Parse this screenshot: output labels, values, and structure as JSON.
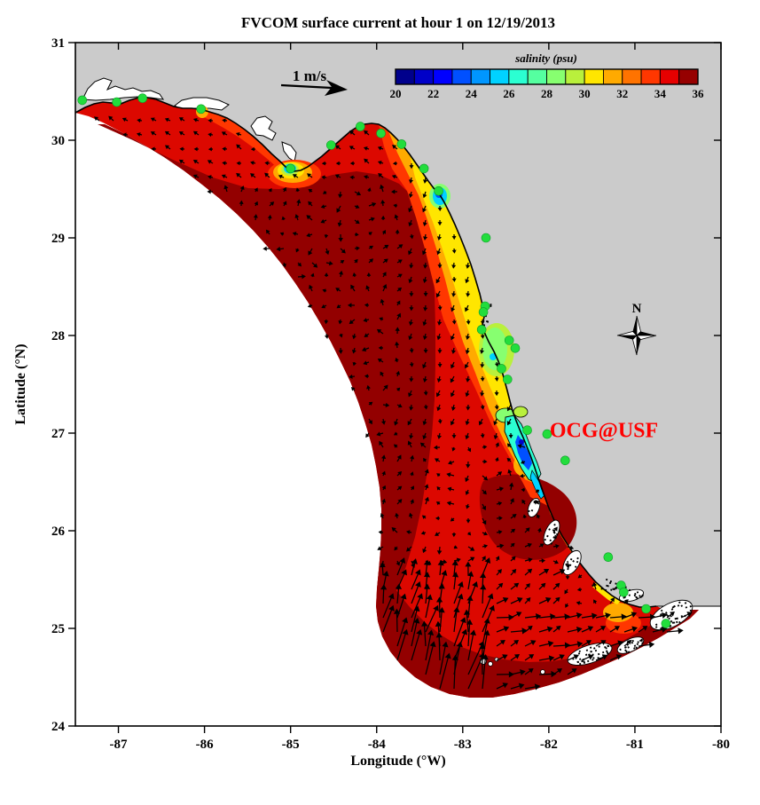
{
  "chart_data": {
    "type": "map",
    "title": "FVCOM surface current at hour 1 on 12/19/2013",
    "xlabel": "Longitude (°W)",
    "ylabel": "Latitude (°N)",
    "xlim": [
      -87.5,
      -80
    ],
    "ylim": [
      24,
      31
    ],
    "xticks": [
      "-87",
      "-86",
      "-85",
      "-84",
      "-83",
      "-82",
      "-81",
      "-80"
    ],
    "yticks": [
      "31",
      "30",
      "29",
      "28",
      "27",
      "26",
      "25",
      "24"
    ],
    "grid": false,
    "colorbar": {
      "label": "salinity (psu)",
      "min": 20,
      "max": 36,
      "ticks": [
        "20",
        "22",
        "24",
        "26",
        "28",
        "30",
        "32",
        "34",
        "36"
      ],
      "colors": [
        "#00008c",
        "#0000c8",
        "#0000ff",
        "#0050ff",
        "#0096ff",
        "#00d2ff",
        "#2bffd2",
        "#55ffa0",
        "#87ff70",
        "#b9f03c",
        "#ffe600",
        "#ffaa00",
        "#ff7300",
        "#ff3700",
        "#e60000",
        "#960000"
      ]
    },
    "scale_arrow": {
      "label": "1 m/s"
    },
    "compass": {
      "label": "N"
    },
    "annotation": {
      "text": "OCG@USF",
      "color": "#ff0000",
      "lon": -81.99,
      "lat": 26.96
    },
    "land_color": "#cbcbcb",
    "sea_outside_domain_color": "#ffffff",
    "field_summary": {
      "variable": "sea surface salinity (psu)",
      "offshore_shelf_psu": [
        35,
        36
      ],
      "big_bend_coastal_band_psu": [
        30,
        34
      ],
      "river_plume_minima_psu": [
        20,
        26
      ],
      "low_salinity_features": [
        "Apalachicola Bay plume",
        "Suwannee plume",
        "Tampa Bay"
      ],
      "vectors": "surface current arrows on regular grid; strongest flow (near 1 m/s) along the southern open boundary and Florida Keys, directed north to east"
    },
    "stations": {
      "marker_color": "#22dd3c",
      "points": [
        {
          "lon": -87.42,
          "lat": 30.41
        },
        {
          "lon": -87.02,
          "lat": 30.39
        },
        {
          "lon": -86.72,
          "lat": 30.43
        },
        {
          "lon": -86.04,
          "lat": 30.32
        },
        {
          "lon": -85.0,
          "lat": 29.71
        },
        {
          "lon": -84.53,
          "lat": 29.95
        },
        {
          "lon": -84.19,
          "lat": 30.14
        },
        {
          "lon": -83.95,
          "lat": 30.07
        },
        {
          "lon": -83.71,
          "lat": 29.96
        },
        {
          "lon": -83.45,
          "lat": 29.71
        },
        {
          "lon": -83.28,
          "lat": 29.48
        },
        {
          "lon": -82.73,
          "lat": 29.0
        },
        {
          "lon": -82.74,
          "lat": 28.3
        },
        {
          "lon": -82.76,
          "lat": 28.24
        },
        {
          "lon": -82.78,
          "lat": 28.06
        },
        {
          "lon": -82.46,
          "lat": 27.95
        },
        {
          "lon": -82.39,
          "lat": 27.87
        },
        {
          "lon": -82.55,
          "lat": 27.66
        },
        {
          "lon": -82.48,
          "lat": 27.55
        },
        {
          "lon": -82.25,
          "lat": 27.03
        },
        {
          "lon": -82.02,
          "lat": 26.99
        },
        {
          "lon": -81.81,
          "lat": 26.72
        },
        {
          "lon": -81.31,
          "lat": 25.73
        },
        {
          "lon": -81.16,
          "lat": 25.44
        },
        {
          "lon": -81.13,
          "lat": 25.37
        },
        {
          "lon": -80.87,
          "lat": 25.2
        },
        {
          "lon": -80.64,
          "lat": 25.05
        }
      ]
    }
  }
}
